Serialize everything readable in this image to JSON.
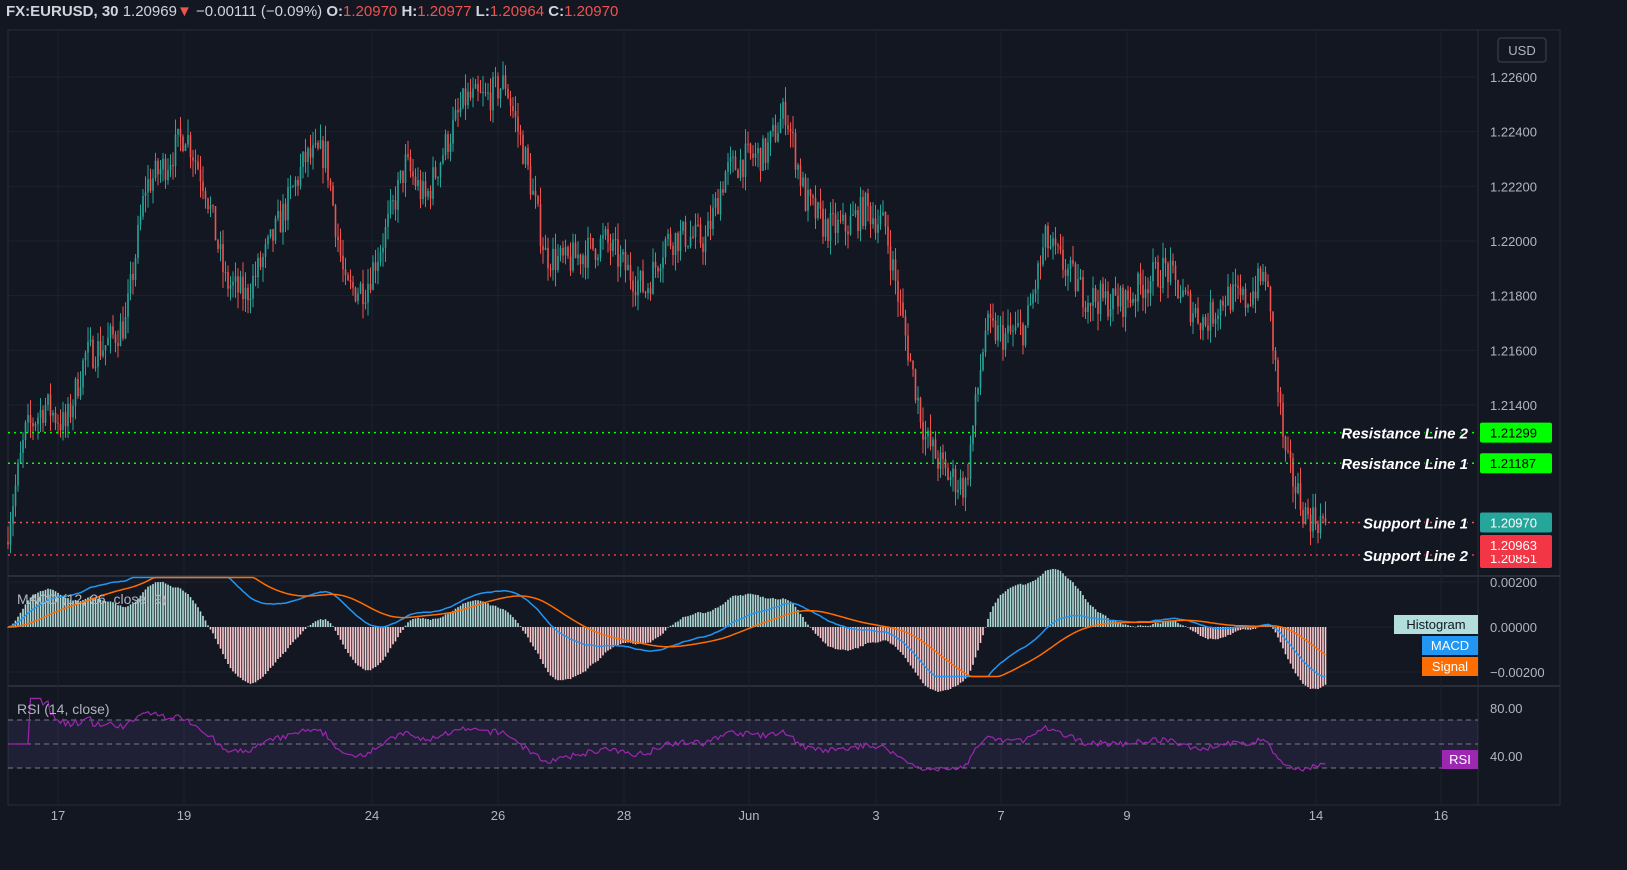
{
  "header": {
    "symbol": "FX:EURUSD, 30",
    "last": "1.20969",
    "change": "−0.00111 (−0.09%)",
    "o_label": "O:",
    "o": "1.20970",
    "h_label": "H:",
    "h": "1.20977",
    "l_label": "L:",
    "l": "1.20964",
    "c_label": "C:",
    "c": "1.20970"
  },
  "currency": "USD",
  "colors": {
    "up": "#26a69a",
    "down": "#ef5350",
    "background": "#131722",
    "resistance": "#00ff00",
    "support": "#f23645",
    "macd": "#2196f3",
    "signal": "#ff6d00",
    "rsi": "#9c27b0"
  },
  "chart_data": [
    {
      "type": "candlestick",
      "symbol": "FX:EURUSD",
      "interval": "30",
      "price_ticks": [
        "1.22600",
        "1.22400",
        "1.22200",
        "1.22000",
        "1.21800",
        "1.21600",
        "1.21400"
      ],
      "ylim": [
        1.208,
        1.2275
      ],
      "x_ticks": [
        "17",
        "19",
        "24",
        "26",
        "28",
        "Jun",
        "3",
        "7",
        "9",
        "14",
        "16"
      ],
      "approx_closes": [
        1.209,
        1.213,
        1.214,
        1.2132,
        1.2158,
        1.2162,
        1.217,
        1.222,
        1.2228,
        1.224,
        1.222,
        1.2185,
        1.218,
        1.2195,
        1.2212,
        1.223,
        1.2232,
        1.2182,
        1.2183,
        1.2203,
        1.2228,
        1.2215,
        1.2235,
        1.2252,
        1.2252,
        1.2258,
        1.223,
        1.2195,
        1.2192,
        1.2196,
        1.22,
        1.219,
        1.2182,
        1.22,
        1.2202,
        1.22,
        1.2225,
        1.223,
        1.2232,
        1.2248,
        1.2215,
        1.2205,
        1.2205,
        1.2212,
        1.2205,
        1.2165,
        1.2128,
        1.2115,
        1.211,
        1.2168,
        1.2165,
        1.2168,
        1.22,
        1.219,
        1.218,
        1.2178,
        1.2178,
        1.2185,
        1.219,
        1.2178,
        1.217,
        1.218,
        1.2178,
        1.2188,
        1.212,
        1.21,
        1.2097
      ],
      "lines": [
        {
          "label": "Resistance Line 2",
          "price": "1.21299",
          "value": 1.21299,
          "kind": "resistance"
        },
        {
          "label": "Resistance Line 1",
          "price": "1.21187",
          "value": 1.21187,
          "kind": "resistance"
        },
        {
          "label": "Support Line 1",
          "price": "1.20970",
          "value": 1.2097,
          "kind": "last"
        },
        {
          "label": "Support Line 2",
          "price": "1.20851",
          "value": 1.20851,
          "kind": "support"
        }
      ],
      "extra_price_label": {
        "price": "1.20963",
        "value": 1.20963
      }
    },
    {
      "type": "line",
      "title": "MACD (12, 26, close, 9)",
      "ticks": [
        "0.00200",
        "0.00000",
        "−0.00200"
      ],
      "ylim": [
        -0.0024,
        0.0024
      ],
      "legend": [
        "Histogram",
        "MACD",
        "Signal"
      ]
    },
    {
      "type": "line",
      "title": "RSI (14, close)",
      "ticks": [
        "80.00",
        "40.00"
      ],
      "bands": [
        70,
        50,
        30
      ],
      "ylim": [
        10,
        90
      ],
      "legend": [
        "RSI"
      ]
    }
  ]
}
